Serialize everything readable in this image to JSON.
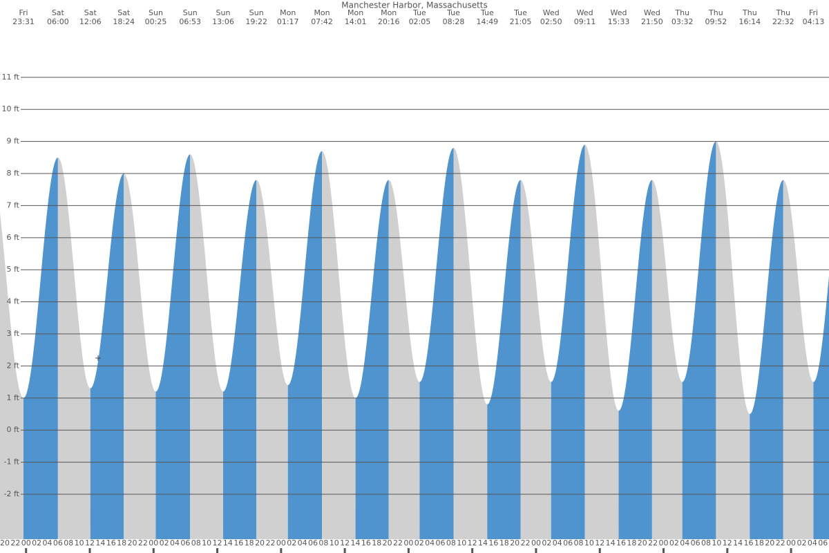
{
  "chart_data": {
    "type": "tide",
    "title": "Manchester Harbor, Massachusetts",
    "ylim": [
      -3.4,
      13.41
    ],
    "yticks": [
      {
        "value": -2,
        "label": "-2 ft"
      },
      {
        "value": -1,
        "label": "-1 ft"
      },
      {
        "value": 0,
        "label": "0 ft"
      },
      {
        "value": 1,
        "label": "1 ft"
      },
      {
        "value": 2,
        "label": "2 ft"
      },
      {
        "value": 3,
        "label": "3 ft"
      },
      {
        "value": 4,
        "label": "4 ft"
      },
      {
        "value": 5,
        "label": "5 ft"
      },
      {
        "value": 6,
        "label": "6 ft"
      },
      {
        "value": 7,
        "label": "7 ft"
      },
      {
        "value": 8,
        "label": "8 ft"
      },
      {
        "value": 9,
        "label": "9 ft"
      },
      {
        "value": 10,
        "label": "10 ft"
      },
      {
        "value": 11,
        "label": "11 ft"
      }
    ],
    "rising_color": "#4f93cf",
    "falling_color": "#d0d0d0",
    "grid": true,
    "extremes": [
      {
        "day": "Fri",
        "time": "23:31",
        "height": 1.0
      },
      {
        "day": "Sat",
        "time": "06:00",
        "height": 8.5
      },
      {
        "day": "Sat",
        "time": "12:06",
        "height": 1.3
      },
      {
        "day": "Sat",
        "time": "18:24",
        "height": 8.0
      },
      {
        "day": "Sun",
        "time": "00:25",
        "height": 1.2
      },
      {
        "day": "Sun",
        "time": "06:53",
        "height": 8.6
      },
      {
        "day": "Sun",
        "time": "13:06",
        "height": 1.2
      },
      {
        "day": "Sun",
        "time": "19:22",
        "height": 7.8
      },
      {
        "day": "Mon",
        "time": "01:17",
        "height": 1.4
      },
      {
        "day": "Mon",
        "time": "07:42",
        "height": 8.7
      },
      {
        "day": "Mon",
        "time": "14:01",
        "height": 1.0
      },
      {
        "day": "Mon",
        "time": "20:16",
        "height": 7.8
      },
      {
        "day": "Tue",
        "time": "02:05",
        "height": 1.5
      },
      {
        "day": "Tue",
        "time": "08:28",
        "height": 8.8
      },
      {
        "day": "Tue",
        "time": "14:49",
        "height": 0.8
      },
      {
        "day": "Tue",
        "time": "21:05",
        "height": 7.8
      },
      {
        "day": "Wed",
        "time": "02:50",
        "height": 1.5
      },
      {
        "day": "Wed",
        "time": "09:11",
        "height": 8.9
      },
      {
        "day": "Wed",
        "time": "15:33",
        "height": 0.6
      },
      {
        "day": "Wed",
        "time": "21:50",
        "height": 7.8
      },
      {
        "day": "Thu",
        "time": "03:32",
        "height": 1.5
      },
      {
        "day": "Thu",
        "time": "09:52",
        "height": 9.0
      },
      {
        "day": "Thu",
        "time": "16:14",
        "height": 0.5
      },
      {
        "day": "Thu",
        "time": "22:32",
        "height": 7.8
      },
      {
        "day": "Fri",
        "time": "04:13",
        "height": 1.5
      }
    ],
    "hour_labels": [
      "20",
      "22",
      "00",
      "02",
      "04",
      "06",
      "08",
      "10",
      "12",
      "14",
      "16",
      "18",
      "20",
      "22",
      "00",
      "02",
      "04",
      "06",
      "08",
      "10",
      "12",
      "14",
      "16",
      "18",
      "20",
      "22",
      "00",
      "02",
      "04",
      "06",
      "08",
      "10",
      "12",
      "14",
      "16",
      "18",
      "20",
      "22",
      "00",
      "02",
      "04",
      "06",
      "08",
      "10",
      "12",
      "14",
      "16",
      "18",
      "20",
      "22",
      "00",
      "02",
      "04",
      "06",
      "08",
      "10",
      "12",
      "14",
      "16",
      "18",
      "20",
      "22",
      "00",
      "02",
      "04",
      "06",
      "08",
      "10",
      "12",
      "14",
      "16",
      "18",
      "20",
      "22",
      "00",
      "02",
      "04",
      "06"
    ]
  }
}
